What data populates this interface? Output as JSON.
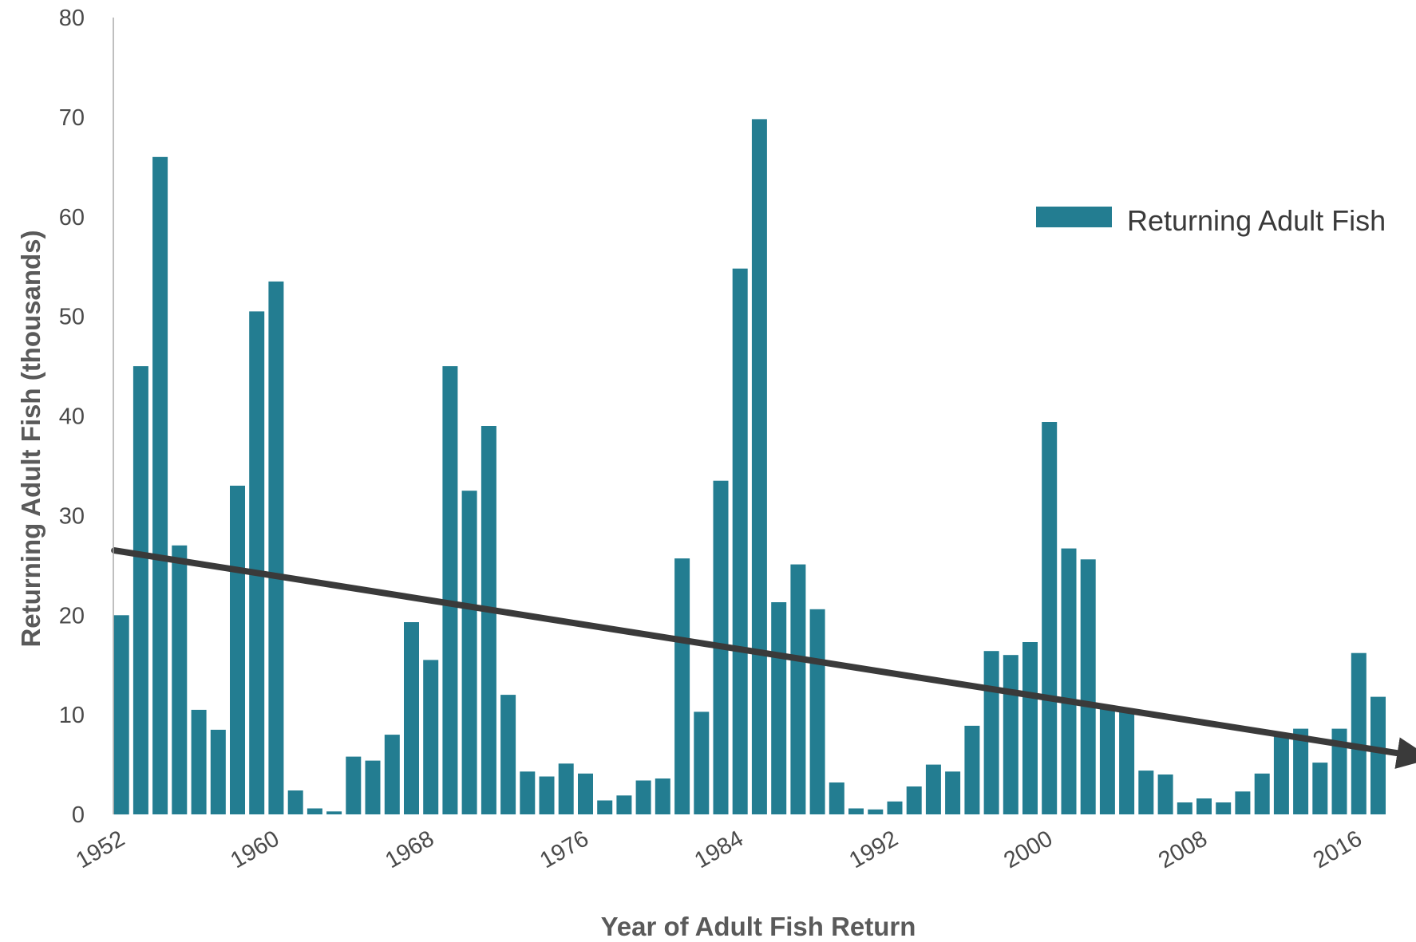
{
  "colors": {
    "bar": "#237d91",
    "trend": "#3a3a3a",
    "axis": "#aaaaaa"
  },
  "chart_data": {
    "type": "bar",
    "title": "",
    "xlabel": "Year of Adult Fish Return",
    "ylabel": "Returning Adult Fish (thousands)",
    "ylim": [
      0,
      80
    ],
    "yticks": [
      0,
      10,
      20,
      30,
      40,
      50,
      60,
      70,
      80
    ],
    "xtick_labels": [
      "1952",
      "1960",
      "1968",
      "1976",
      "1984",
      "1992",
      "2000",
      "2008",
      "2016"
    ],
    "legend_position": "top-right",
    "grid": false,
    "series": [
      {
        "name": "Returning Adult Fish",
        "x": [
          1952,
          1953,
          1954,
          1955,
          1956,
          1957,
          1958,
          1959,
          1960,
          1961,
          1962,
          1963,
          1964,
          1965,
          1966,
          1967,
          1968,
          1969,
          1970,
          1971,
          1972,
          1973,
          1974,
          1975,
          1976,
          1977,
          1978,
          1979,
          1980,
          1981,
          1982,
          1983,
          1984,
          1985,
          1986,
          1987,
          1988,
          1989,
          1990,
          1991,
          1992,
          1993,
          1994,
          1995,
          1996,
          1997,
          1998,
          1999,
          2000,
          2001,
          2002,
          2003,
          2004,
          2005,
          2006,
          2007,
          2008,
          2009,
          2010,
          2011,
          2012,
          2013,
          2014,
          2015,
          2016,
          2017
        ],
        "values": [
          20,
          45,
          66,
          27,
          10.5,
          8.5,
          33,
          50.5,
          53.5,
          2.4,
          0.6,
          0.3,
          5.8,
          5.4,
          8,
          19.3,
          15.5,
          45,
          32.5,
          39,
          12,
          4.3,
          3.8,
          5.1,
          4.1,
          1.4,
          1.9,
          3.4,
          3.6,
          25.7,
          10.3,
          33.5,
          54.8,
          69.8,
          21.3,
          25.1,
          20.6,
          3.2,
          0.6,
          0.5,
          1.3,
          2.8,
          5,
          4.3,
          8.9,
          16.4,
          16,
          17.3,
          39.4,
          26.7,
          25.6,
          10.8,
          10.6,
          4.4,
          4,
          1.2,
          1.6,
          1.2,
          2.3,
          4.1,
          8.1,
          8.6,
          5.2,
          8.6,
          16.2,
          11.8
        ]
      }
    ],
    "trendline": {
      "type": "linear",
      "start": {
        "x": 1952,
        "y": 26.5
      },
      "end": {
        "x": 2017,
        "y": 6.1
      }
    }
  }
}
